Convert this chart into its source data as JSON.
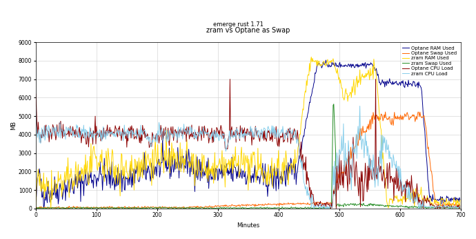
{
  "title": "zram vs Optane as Swap",
  "subtitle": "emerge rust 1.71",
  "xlabel": "Minutes",
  "ylabel": "MB",
  "xlim": [
    0,
    700
  ],
  "ylim": [
    0,
    9000
  ],
  "yticks": [
    0,
    1000,
    2000,
    3000,
    4000,
    5000,
    6000,
    7000,
    8000,
    9000
  ],
  "xticks": [
    0,
    100,
    200,
    300,
    400,
    500,
    600,
    700
  ],
  "series": [
    {
      "label": "Optane RAM Used",
      "color": "#00008B",
      "lw": 0.7
    },
    {
      "label": "Optane Swap Used",
      "color": "#FF6600",
      "lw": 0.7
    },
    {
      "label": "zram RAM Used",
      "color": "#FFD700",
      "lw": 0.7
    },
    {
      "label": "zram Swap Used",
      "color": "#228B22",
      "lw": 0.7
    },
    {
      "label": "Optane CPU Load",
      "color": "#8B0000",
      "lw": 0.7
    },
    {
      "label": "zram CPU Load",
      "color": "#87CEEB",
      "lw": 0.7
    }
  ],
  "background": "#ffffff",
  "grid_color": "#cccccc",
  "title_fontsize": 7,
  "subtitle_fontsize": 6,
  "axis_fontsize": 6,
  "tick_fontsize": 5.5,
  "legend_fontsize": 5
}
